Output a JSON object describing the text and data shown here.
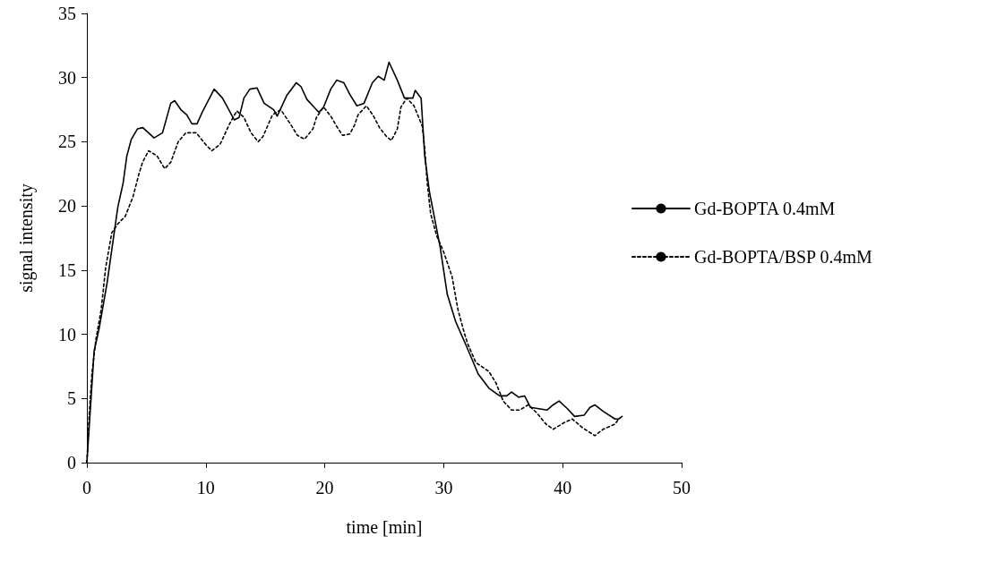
{
  "chart_data": {
    "type": "line",
    "xlabel": "time [min]",
    "ylabel": "signal intensity",
    "xlim": [
      0,
      50
    ],
    "xticks": [
      0,
      10,
      20,
      30,
      40,
      50
    ],
    "ylim": [
      0,
      35
    ],
    "yticks": [
      0,
      5,
      10,
      15,
      20,
      25,
      30,
      35
    ],
    "grid": false,
    "legend": "right",
    "marker": "none",
    "series": [
      {
        "name": "Gd-BOPTA 0.4mM",
        "color": "#000000",
        "line_style": "solid",
        "x": [
          0,
          0.61,
          1.02,
          1.7,
          2.6,
          3.05,
          3.36,
          3.74,
          4.25,
          4.7,
          5.65,
          6.36,
          7.05,
          7.38,
          7.9,
          8.4,
          8.83,
          9.26,
          9.7,
          10.7,
          11.4,
          12.4,
          12.8,
          13.2,
          13.7,
          14.3,
          14.9,
          15.7,
          16.0,
          16.8,
          17.6,
          18.0,
          18.5,
          19.1,
          19.5,
          19.9,
          20.5,
          21.0,
          21.6,
          22.1,
          22.7,
          23.3,
          24.0,
          24.5,
          25.0,
          25.4,
          26.1,
          26.7,
          27.4,
          27.6,
          28.1,
          28.4,
          28.8,
          29.7,
          30.3,
          31.0,
          31.9,
          32.9,
          33.8,
          34.7,
          35.3,
          35.7,
          36.3,
          36.8,
          37.3,
          38.0,
          38.7,
          39.2,
          39.7,
          40.4,
          41.0,
          41.8,
          42.3,
          42.7,
          43.4,
          44.4,
          44.7,
          45.0
        ],
        "values": [
          0,
          8.7,
          10.4,
          14.0,
          19.9,
          21.8,
          23.9,
          25.2,
          26.0,
          26.1,
          25.3,
          25.7,
          28.0,
          28.2,
          27.5,
          27.1,
          26.4,
          26.4,
          27.3,
          29.1,
          28.4,
          26.7,
          26.9,
          28.4,
          29.1,
          29.2,
          28.0,
          27.5,
          27.0,
          28.6,
          29.6,
          29.3,
          28.3,
          27.7,
          27.3,
          27.7,
          29.1,
          29.8,
          29.6,
          28.7,
          27.8,
          28.0,
          29.6,
          30.1,
          29.8,
          31.2,
          29.8,
          28.4,
          28.4,
          29.0,
          28.4,
          23.9,
          21.1,
          16.8,
          13.1,
          11.0,
          9.1,
          6.9,
          5.8,
          5.2,
          5.2,
          5.5,
          5.1,
          5.2,
          4.3,
          4.2,
          4.1,
          4.5,
          4.8,
          4.2,
          3.6,
          3.7,
          4.3,
          4.5,
          4.0,
          3.4,
          3.4,
          3.6
        ]
      },
      {
        "name": "Gd-BOPTA/BSP 0.4mM",
        "color": "#000000",
        "line_style": "dotted",
        "x": [
          0,
          0.18,
          0.43,
          0.76,
          1.2,
          1.58,
          2.09,
          2.6,
          3.23,
          3.87,
          4.38,
          4.68,
          5.19,
          5.9,
          6.54,
          7.05,
          7.68,
          8.32,
          9.2,
          9.97,
          10.5,
          11.2,
          12.0,
          12.6,
          13.2,
          13.8,
          14.4,
          14.8,
          15.6,
          16.3,
          17.1,
          17.7,
          18.3,
          19.0,
          19.3,
          19.9,
          20.5,
          21.0,
          21.5,
          22.1,
          22.5,
          22.8,
          23.5,
          24.1,
          24.6,
          25.2,
          25.6,
          26.1,
          26.4,
          26.9,
          27.5,
          27.9,
          28.2,
          28.4,
          28.6,
          28.9,
          29.4,
          30.0,
          30.7,
          31.2,
          31.7,
          32.0,
          32.7,
          33.8,
          34.4,
          35.0,
          35.7,
          36.4,
          37.1,
          37.8,
          38.6,
          39.2,
          40.1,
          40.8,
          41.7,
          42.7,
          43.4,
          44.4,
          44.7
        ],
        "values": [
          0,
          3.5,
          7.0,
          9.6,
          11.9,
          15.2,
          17.9,
          18.6,
          19.2,
          20.7,
          22.5,
          23.4,
          24.3,
          23.9,
          22.9,
          23.4,
          25.0,
          25.7,
          25.7,
          24.8,
          24.3,
          24.8,
          26.4,
          27.4,
          26.9,
          25.7,
          25.0,
          25.4,
          27.1,
          27.5,
          26.4,
          25.5,
          25.2,
          26.0,
          26.9,
          27.7,
          27.0,
          26.2,
          25.5,
          25.6,
          26.3,
          27.1,
          27.8,
          27.0,
          26.1,
          25.4,
          25.1,
          26.0,
          27.7,
          28.4,
          27.8,
          26.9,
          26.2,
          24.5,
          21.9,
          19.4,
          17.7,
          16.4,
          14.5,
          11.9,
          10.2,
          9.3,
          7.8,
          7.1,
          6.2,
          4.8,
          4.1,
          4.1,
          4.5,
          3.9,
          3.0,
          2.6,
          3.1,
          3.4,
          2.7,
          2.1,
          2.6,
          3.0,
          3.4
        ]
      }
    ]
  }
}
